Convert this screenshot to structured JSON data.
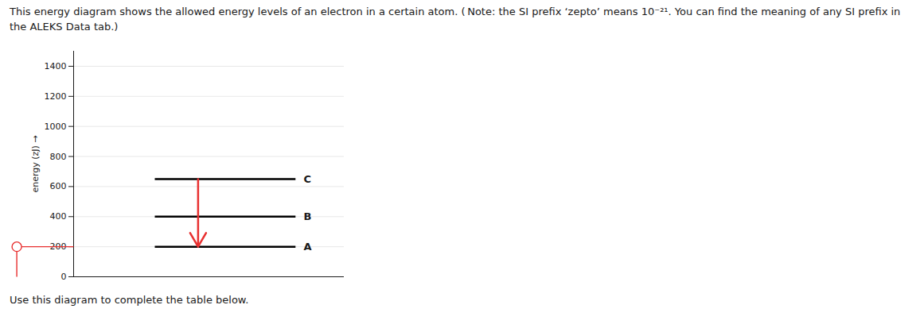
{
  "chart_data": {
    "type": "levels",
    "title": "This energy diagram shows the allowed energy levels of an electron in a certain atom. ( Note: the SI prefix ‘zepto’ means 10⁻²¹. You can find the meaning of any SI prefix in the ALEKS Data tab.)",
    "caption": "Use this diagram to complete the table below.",
    "ylabel": "energy (zJ)",
    "categories": [
      "A",
      "B",
      "C"
    ],
    "values": [
      200,
      400,
      650
    ],
    "color": "#000000",
    "ylim": [
      0,
      1500
    ],
    "yticks": [
      0,
      200,
      400,
      600,
      800,
      1000,
      1200,
      1400
    ],
    "grid": true,
    "tick_labels": "y",
    "arrow": {
      "from": "C",
      "to": "A",
      "color": "#e83030"
    },
    "highlight": {
      "level": "A",
      "color": "#e83030"
    }
  }
}
